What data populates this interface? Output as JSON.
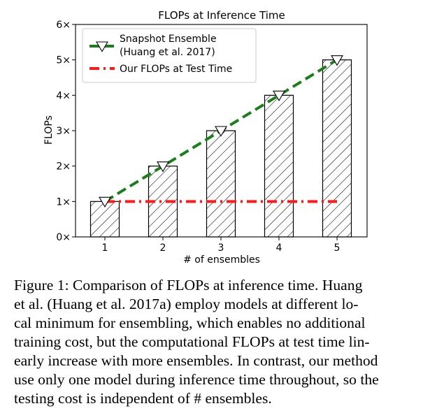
{
  "chart_data": {
    "type": "bar",
    "title": "FLOPs at Inference Time",
    "xlabel": "# of ensembles",
    "ylabel": "FLOPs",
    "categories": [
      "1",
      "2",
      "3",
      "4",
      "5"
    ],
    "values": [
      1,
      2,
      3,
      4,
      5
    ],
    "ylim": [
      0,
      6
    ],
    "yticks": [
      0,
      1,
      2,
      3,
      4,
      5,
      6
    ],
    "ytick_labels": [
      "0×",
      "1×",
      "2×",
      "3×",
      "4×",
      "5×",
      "6×"
    ],
    "bar_hatch": "diagonal",
    "series": [
      {
        "name": "Snapshot Ensemble\n(Huang et al. 2017)",
        "legend_lines": [
          "Snapshot Ensemble",
          "(Huang et al. 2017)"
        ],
        "style": "dashed",
        "marker": "triangle-down",
        "color": "#1a7f1a",
        "values": [
          1,
          2,
          3,
          4,
          5
        ]
      },
      {
        "name": "Our FLOPs at Test Time",
        "legend_lines": [
          "Our FLOPs at Test Time"
        ],
        "style": "dash-dot",
        "color": "#ff1a1a",
        "values": [
          1,
          1,
          1,
          1,
          1
        ]
      }
    ],
    "legend_position": "top-left",
    "grid": false
  },
  "caption_lines": [
    "Figure 1: Comparison of FLOPs at inference time. Huang",
    "et al. (Huang et al. 2017a) employ models at different lo-",
    "cal minimum for ensembling, which enables no additional",
    "training cost, but the computational FLOPs at test time lin-",
    "early increase with more ensembles. In contrast, our method",
    "use only one model during inference time throughout, so the",
    "testing cost is independent of # ensembles."
  ]
}
